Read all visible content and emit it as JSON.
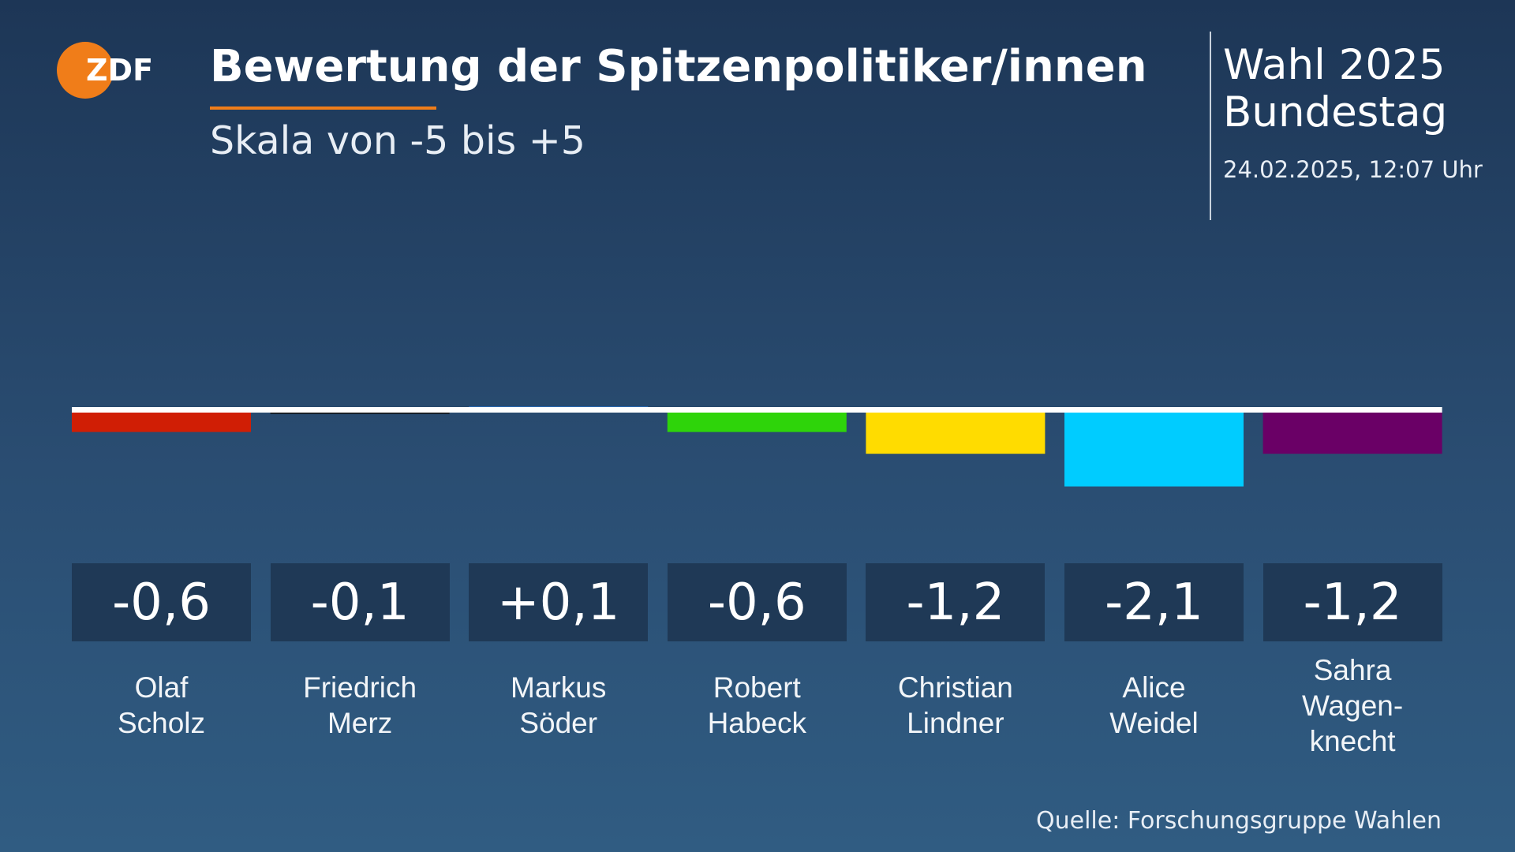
{
  "logo": "ZDF",
  "header": {
    "election": "Wahl 2025",
    "parliament": "Bundestag",
    "timestamp": "24.02.2025, 12:07 Uhr"
  },
  "chart_data": {
    "type": "bar",
    "title": "Bewertung der Spitzenpolitiker/innen",
    "subtitle": "Skala von -5 bis +5",
    "source": "Quelle: Forschungsgruppe Wahlen",
    "categories": [
      "Olaf\nScholz",
      "Friedrich\nMerz",
      "Markus\nSöder",
      "Robert\nHabeck",
      "Christian\nLindner",
      "Alice\nWeidel",
      "Sahra\nWagen-\nknecht"
    ],
    "values": [
      -0.6,
      -0.1,
      0.1,
      -0.6,
      -1.2,
      -2.1,
      -1.2
    ],
    "value_labels": [
      "-0,6",
      "-0,1",
      "+0,1",
      "-0,6",
      "-1,2",
      "-2,1",
      "-1,2"
    ],
    "colors": [
      "#d01e05",
      "#111111",
      "#2f7fe0",
      "#2ed40a",
      "#ffdc00",
      "#00ccff",
      "#6a0066"
    ]
  }
}
